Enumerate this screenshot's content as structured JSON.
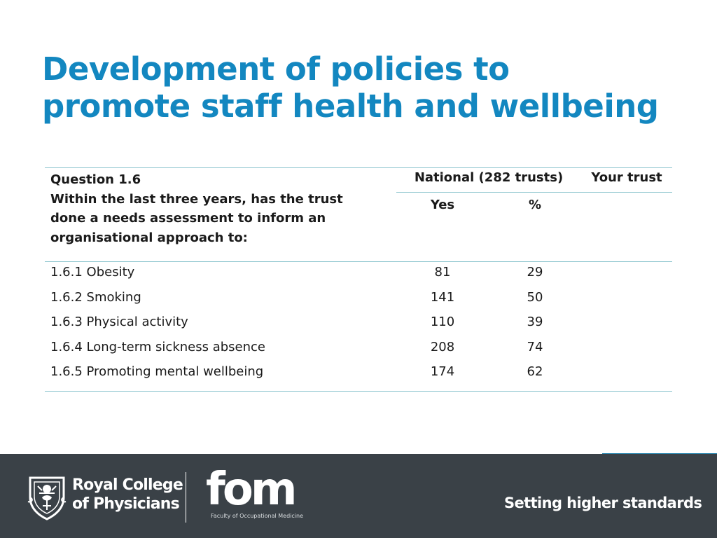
{
  "title": {
    "line1": "Development of policies to",
    "line2": "promote staff health and wellbeing"
  },
  "table": {
    "question_label": "Question 1.6",
    "question_text": "Within the last three years, has the trust done a needs assessment to inform an organisational approach to:",
    "national_header": "National (282 trusts)",
    "your_trust_header": "Your trust",
    "yes_header": "Yes",
    "percent_header": "%",
    "rows": [
      {
        "label": "1.6.1 Obesity",
        "yes": "81",
        "percent": "29",
        "your_trust": ""
      },
      {
        "label": "1.6.2 Smoking",
        "yes": "141",
        "percent": "50",
        "your_trust": ""
      },
      {
        "label": "1.6.3 Physical activity",
        "yes": "110",
        "percent": "39",
        "your_trust": ""
      },
      {
        "label": "1.6.4 Long-term sickness absence",
        "yes": "208",
        "percent": "74",
        "your_trust": ""
      },
      {
        "label": "1.6.5 Promoting mental wellbeing",
        "yes": "174",
        "percent": "62",
        "your_trust": ""
      }
    ]
  },
  "footer": {
    "rcp_line1": "Royal College",
    "rcp_line2": "of Physicians",
    "fom_logo": "fom",
    "fom_subtitle": "Faculty of Occupational Medicine",
    "tagline": "Setting higher standards",
    "background_color": "#3a4147",
    "accent_color": "#1387c0"
  }
}
